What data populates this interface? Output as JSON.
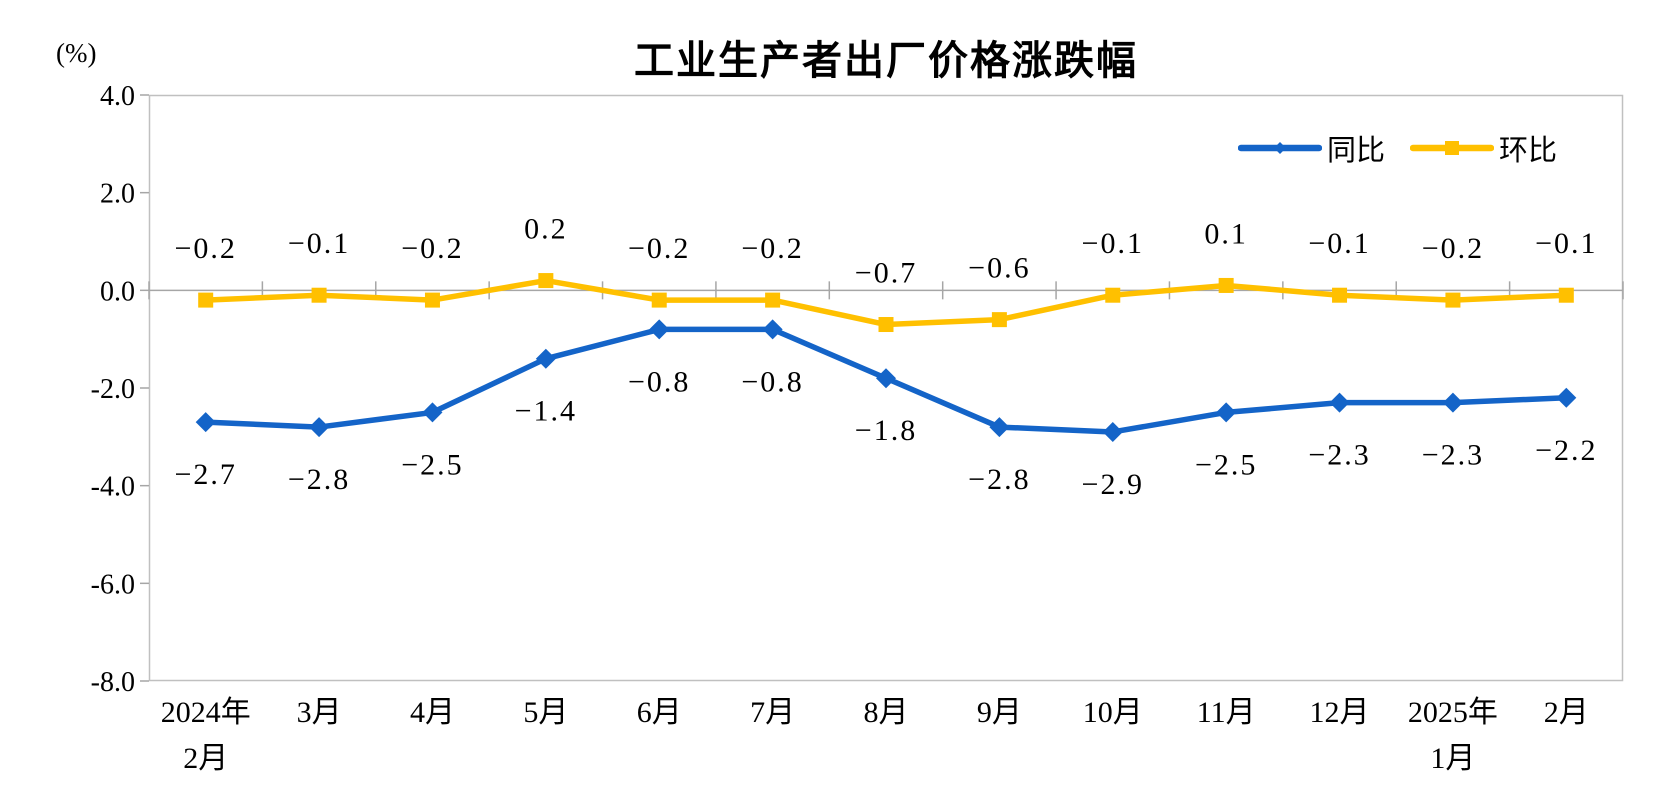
{
  "title": "工业生产者出厂价格涨跌幅",
  "y_unit": "(%)",
  "legend": [
    {
      "label": "同比",
      "color": "#1464C8",
      "marker": "diamond"
    },
    {
      "label": "环比",
      "color": "#FFC000",
      "marker": "square"
    }
  ],
  "colors": {
    "background": "#FFFFFF",
    "plot_border": "#C0C0C0",
    "zero_axis": "#A6A6A6",
    "text": "#000000",
    "series_yoy": "#1464C8",
    "series_mom": "#FFC000"
  },
  "chart_data": {
    "type": "line",
    "title": "工业生产者出厂价格涨跌幅",
    "xlabel": "",
    "ylabel": "(%)",
    "ylim": [
      -8,
      4
    ],
    "ytick_step": 2,
    "ytick_labels": [
      "4.0",
      "2.0",
      "0.0",
      "-2.0",
      "-4.0",
      "-6.0",
      "-8.0"
    ],
    "grid": false,
    "legend_position": "top-right",
    "categories": [
      [
        "2024年",
        "2月"
      ],
      "3月",
      "4月",
      "5月",
      "6月",
      "7月",
      "8月",
      "9月",
      "10月",
      "11月",
      "12月",
      [
        "2025年",
        "1月"
      ],
      "2月"
    ],
    "series": [
      {
        "name": "同比",
        "id": "yoy",
        "color": "#1464C8",
        "marker": "diamond",
        "label_position": "below",
        "values": [
          -2.7,
          -2.8,
          -2.5,
          -1.4,
          -0.8,
          -0.8,
          -1.8,
          -2.8,
          -2.9,
          -2.5,
          -2.3,
          -2.3,
          -2.2
        ]
      },
      {
        "name": "环比",
        "id": "mom",
        "color": "#FFC000",
        "marker": "square",
        "label_position": "above",
        "values": [
          -0.2,
          -0.1,
          -0.2,
          0.2,
          -0.2,
          -0.2,
          -0.7,
          -0.6,
          -0.1,
          0.1,
          -0.1,
          -0.2,
          -0.1
        ]
      }
    ]
  }
}
